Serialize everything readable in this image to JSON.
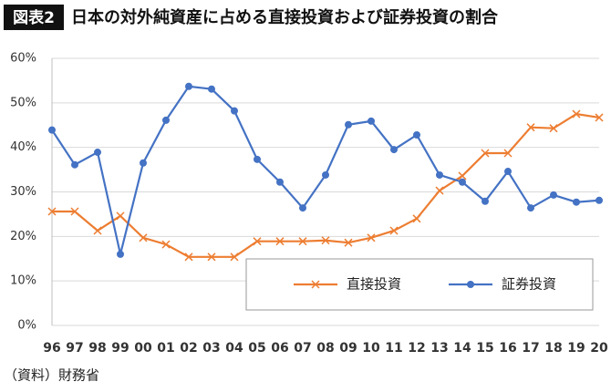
{
  "chart_data": {
    "type": "line",
    "badge": "図表2",
    "title": "日本の対外純資産に占める直接投資および証券投資の割合",
    "source": "（資料）財務省",
    "categories": [
      "96",
      "97",
      "98",
      "99",
      "00",
      "01",
      "02",
      "03",
      "04",
      "05",
      "06",
      "07",
      "08",
      "09",
      "10",
      "11",
      "12",
      "13",
      "14",
      "15",
      "16",
      "17",
      "18",
      "19",
      "20"
    ],
    "series": [
      {
        "name": "直接投資",
        "color": "#ed7d31",
        "marker": "x",
        "values": [
          25.6,
          25.6,
          21.3,
          24.6,
          19.7,
          18.2,
          15.4,
          15.4,
          15.4,
          18.9,
          18.9,
          18.9,
          19.1,
          18.6,
          19.7,
          21.3,
          24.0,
          30.3,
          33.6,
          38.7,
          38.7,
          44.5,
          44.3,
          47.5,
          46.7
        ]
      },
      {
        "name": "証券投資",
        "color": "#4472c4",
        "marker": "circle",
        "values": [
          43.9,
          36.1,
          38.9,
          16.0,
          36.5,
          46.1,
          53.7,
          53.1,
          48.2,
          37.3,
          32.2,
          26.4,
          33.8,
          45.1,
          45.9,
          39.5,
          42.8,
          33.8,
          32.2,
          27.9,
          34.6,
          26.4,
          29.3,
          27.7,
          28.1
        ]
      }
    ],
    "ylim": [
      0,
      60
    ],
    "yticks": [
      {
        "value": 0,
        "label": "0%"
      },
      {
        "value": 10,
        "label": "10%"
      },
      {
        "value": 20,
        "label": "20%"
      },
      {
        "value": 30,
        "label": "30%"
      },
      {
        "value": 40,
        "label": "40%"
      },
      {
        "value": 50,
        "label": "50%"
      },
      {
        "value": 60,
        "label": "60%"
      }
    ],
    "grid": true,
    "legend": "lower-right"
  }
}
